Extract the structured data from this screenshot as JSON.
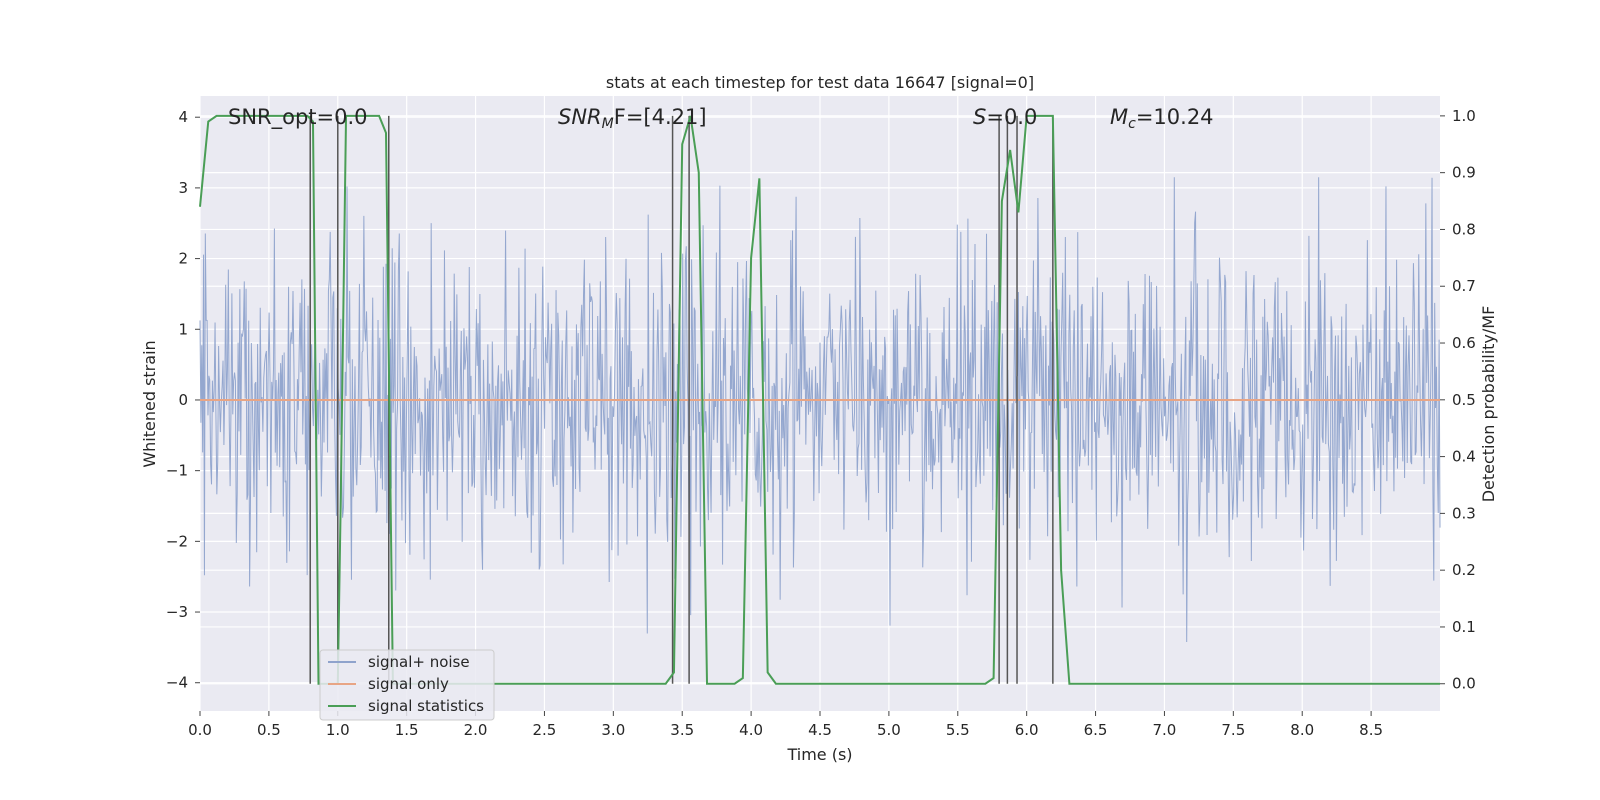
{
  "chart_data": {
    "type": "line",
    "title": "stats at each timestep for test data 16647 [signal=0]",
    "xlabel": "Time (s)",
    "ylabel_left": "Whitened strain",
    "ylabel_right": "Detection probability/MF",
    "xlim": [
      0.0,
      9.0
    ],
    "ylim_left": [
      -4.4,
      4.3
    ],
    "ylim_right": [
      -0.048,
      1.035
    ],
    "x_ticks": [
      "0.0",
      "0.5",
      "1.0",
      "1.5",
      "2.0",
      "2.5",
      "3.0",
      "3.5",
      "4.0",
      "4.5",
      "5.0",
      "5.5",
      "6.0",
      "6.5",
      "7.0",
      "7.5",
      "8.0",
      "8.5"
    ],
    "y_ticks_left": [
      "4",
      "3",
      "2",
      "1",
      "0",
      "−1",
      "−2",
      "−3",
      "−4"
    ],
    "y_ticks_right": [
      "1.0",
      "0.9",
      "0.8",
      "0.7",
      "0.6",
      "0.5",
      "0.4",
      "0.3",
      "0.2",
      "0.1",
      "0.0"
    ],
    "grid": true,
    "legend_position": "lower-left",
    "annotations": {
      "snr_opt": "SNR_opt=0.0",
      "snr_mf_main": "SNR",
      "snr_mf_sub": "M",
      "snr_mf_rest": "F=[4.21]",
      "s_main": "S",
      "s_rest": "=0.0",
      "mc_main": "M",
      "mc_sub": "c",
      "mc_rest": "=10.24"
    },
    "series": [
      {
        "name": "signal+ noise",
        "color": "#8fa3cc",
        "axis": "left",
        "description_values": "whitened noise, amplitude approx within [-3.6, 3.2]"
      },
      {
        "name": "signal only",
        "color": "#e8a585",
        "axis": "left",
        "x": [
          0.0,
          9.0
        ],
        "y": [
          0.0,
          0.0
        ]
      },
      {
        "name": "signal statistics",
        "color": "#4a9e56",
        "axis": "right",
        "x": [
          0.0,
          0.06,
          0.12,
          0.2,
          0.5,
          0.78,
          0.82,
          0.86,
          1.0,
          1.02,
          1.06,
          1.3,
          1.35,
          1.4,
          1.42,
          1.5,
          3.38,
          3.44,
          3.5,
          3.56,
          3.62,
          3.68,
          3.75,
          3.88,
          3.94,
          4.0,
          4.06,
          4.12,
          4.18,
          4.5,
          5.7,
          5.76,
          5.82,
          5.88,
          5.94,
          6.0,
          6.06,
          6.19,
          6.25,
          6.31,
          9.0
        ],
        "y": [
          0.84,
          0.99,
          1.0,
          1.0,
          1.0,
          1.0,
          0.99,
          0.0,
          0.0,
          0.3,
          1.0,
          1.0,
          0.97,
          0.0,
          0.0,
          0.0,
          0.0,
          0.02,
          0.95,
          1.0,
          0.9,
          0.0,
          0.0,
          0.0,
          0.01,
          0.75,
          0.89,
          0.02,
          0.0,
          0.0,
          0.0,
          0.01,
          0.85,
          0.94,
          0.83,
          1.0,
          1.0,
          1.0,
          0.2,
          0.0,
          0.0
        ]
      }
    ],
    "vertical_markers_x": [
      0.8,
      1.0,
      1.37,
      3.43,
      3.55,
      5.8,
      5.86,
      5.93,
      6.19
    ],
    "legend": {
      "noise_label": "signal+ noise",
      "signal_label": "signal only",
      "stats_label": "signal statistics"
    },
    "colors": {
      "background": "#eaeaf2",
      "grid": "#ffffff",
      "noise": "#8fa3cc",
      "signal": "#e8a585",
      "stats": "#4a9e56",
      "markers": "#555555"
    }
  }
}
